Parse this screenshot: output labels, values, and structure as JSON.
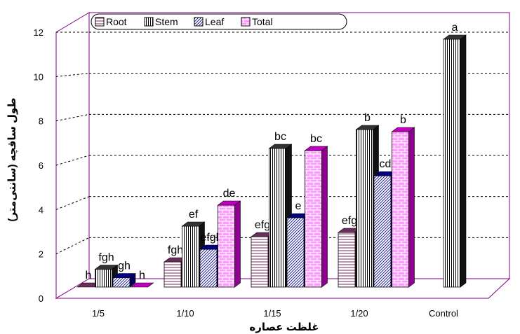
{
  "chart_data": {
    "type": "bar",
    "title": "",
    "xlabel": "غلظت عصاره",
    "ylabel": "طول ساقچه (سانتی‌متر)",
    "ylim": [
      0,
      12
    ],
    "yticks": [
      "0",
      "2",
      "4",
      "6",
      "8",
      "10",
      "12"
    ],
    "categories": [
      "1/5",
      "1/10",
      "1/15",
      "1/20",
      "Control"
    ],
    "legend_position": "top-left",
    "grid": true,
    "series": [
      {
        "name": "Root",
        "pattern": "hlines",
        "color": "#7a2a5e",
        "values": [
          0.0,
          1.2,
          2.4,
          2.6,
          null
        ],
        "labels": [
          "h",
          "fgh",
          "efg",
          "efg",
          ""
        ]
      },
      {
        "name": "Stem",
        "pattern": "vlines",
        "color": "#222222",
        "values": [
          0.85,
          2.9,
          6.6,
          7.5,
          11.8
        ],
        "labels": [
          "fgh",
          "ef",
          "bc",
          "b",
          "a"
        ]
      },
      {
        "name": "Leaf",
        "pattern": "diag",
        "color": "#000080",
        "values": [
          0.45,
          1.8,
          3.3,
          5.3,
          null
        ],
        "labels": [
          "gh",
          "efgh",
          "e",
          "cd",
          ""
        ]
      },
      {
        "name": "Total",
        "pattern": "brick",
        "color": "#c000c0",
        "values": [
          0.0,
          3.9,
          6.5,
          7.4,
          null
        ],
        "labels": [
          "h",
          "de",
          "bc",
          "b",
          ""
        ]
      }
    ]
  }
}
